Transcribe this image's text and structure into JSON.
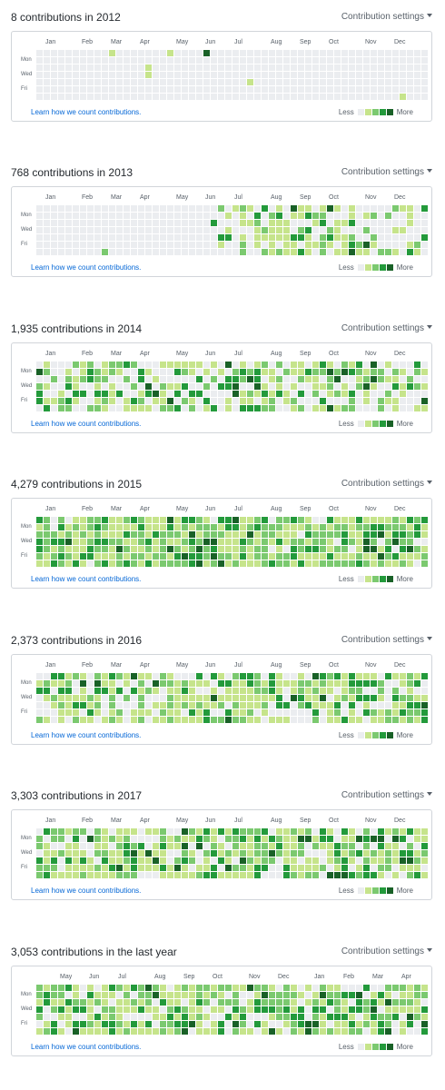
{
  "settings_label": "Contribution settings",
  "learn_label": "Learn how we count contributions.",
  "legend": {
    "less": "Less",
    "more": "More",
    "colors": [
      "#ebedf0",
      "#c6e48b",
      "#7bc96f",
      "#239a3b",
      "#196127"
    ]
  },
  "day_labels": [
    "Mon",
    "Wed",
    "Fri"
  ],
  "sections": [
    {
      "title": "8 contributions in 2012",
      "months": [
        "Jan",
        "Feb",
        "Mar",
        "Apr",
        "May",
        "Jun",
        "Jul",
        "Aug",
        "Sep",
        "Oct",
        "Nov",
        "Dec"
      ],
      "month_weeks": [
        1,
        6,
        10,
        14,
        19,
        23,
        27,
        32,
        36,
        40,
        45,
        49
      ]
    },
    {
      "title": "768 contributions in 2013",
      "months": [
        "Jan",
        "Feb",
        "Mar",
        "Apr",
        "May",
        "Jun",
        "Jul",
        "Aug",
        "Sep",
        "Oct",
        "Nov",
        "Dec"
      ],
      "month_weeks": [
        1,
        6,
        10,
        14,
        19,
        23,
        27,
        32,
        36,
        40,
        45,
        49
      ]
    },
    {
      "title": "1,935 contributions in 2014",
      "months": [
        "Jan",
        "Feb",
        "Mar",
        "Apr",
        "May",
        "Jun",
        "Jul",
        "Aug",
        "Sep",
        "Oct",
        "Nov",
        "Dec"
      ],
      "month_weeks": [
        1,
        6,
        10,
        14,
        19,
        23,
        27,
        32,
        36,
        40,
        45,
        49
      ]
    },
    {
      "title": "4,279 contributions in 2015",
      "months": [
        "Jan",
        "Feb",
        "Mar",
        "Apr",
        "May",
        "Jun",
        "Jul",
        "Aug",
        "Sep",
        "Oct",
        "Nov",
        "Dec"
      ],
      "month_weeks": [
        1,
        6,
        10,
        14,
        19,
        23,
        27,
        32,
        36,
        40,
        45,
        49
      ]
    },
    {
      "title": "2,373 contributions in 2016",
      "months": [
        "Jan",
        "Feb",
        "Mar",
        "Apr",
        "May",
        "Jun",
        "Jul",
        "Aug",
        "Sep",
        "Oct",
        "Nov",
        "Dec"
      ],
      "month_weeks": [
        1,
        6,
        10,
        14,
        19,
        23,
        27,
        32,
        36,
        40,
        45,
        49
      ]
    },
    {
      "title": "3,303 contributions in 2017",
      "months": [
        "Jan",
        "Feb",
        "Mar",
        "Apr",
        "May",
        "Jun",
        "Jul",
        "Aug",
        "Sep",
        "Oct",
        "Nov",
        "Dec"
      ],
      "month_weeks": [
        1,
        6,
        10,
        14,
        19,
        23,
        27,
        32,
        36,
        40,
        45,
        49
      ]
    },
    {
      "title": "3,053 contributions in the last year",
      "months": [
        "May",
        "Jun",
        "Jul",
        "Aug",
        "Sep",
        "Oct",
        "Nov",
        "Dec",
        "Jan",
        "Feb",
        "Mar",
        "Apr"
      ],
      "month_weeks": [
        3,
        7,
        11,
        16,
        20,
        24,
        29,
        33,
        38,
        42,
        46,
        50
      ]
    }
  ]
}
